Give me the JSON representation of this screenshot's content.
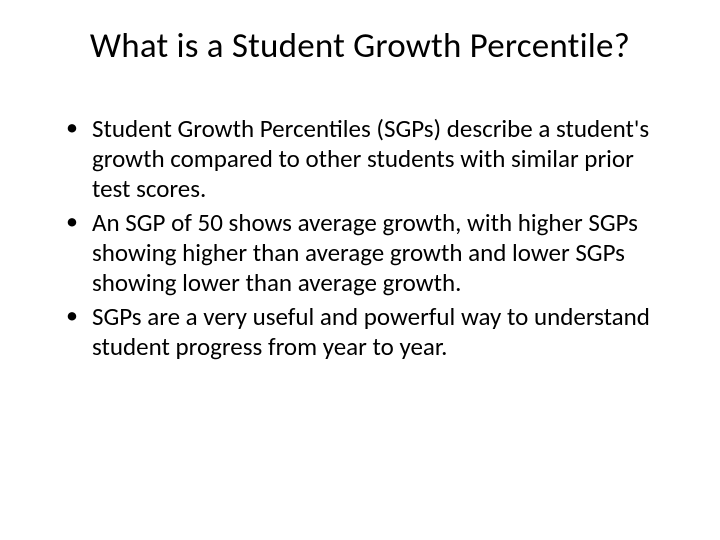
{
  "slide": {
    "title": "What is a Student Growth Percentile?",
    "bullets": [
      " Student Growth Percentiles (SGPs) describe a student's growth compared to other students with similar prior test scores.",
      "An SGP of 50 shows average growth, with higher SGPs showing higher than average growth and lower SGPs showing lower than average growth.",
      "SGPs are a very useful and powerful way to understand student progress from year to year."
    ]
  },
  "style": {
    "background_color": "#ffffff",
    "text_color": "#000000",
    "title_fontsize": 35,
    "body_fontsize": 25,
    "font_family": "Calibri"
  }
}
